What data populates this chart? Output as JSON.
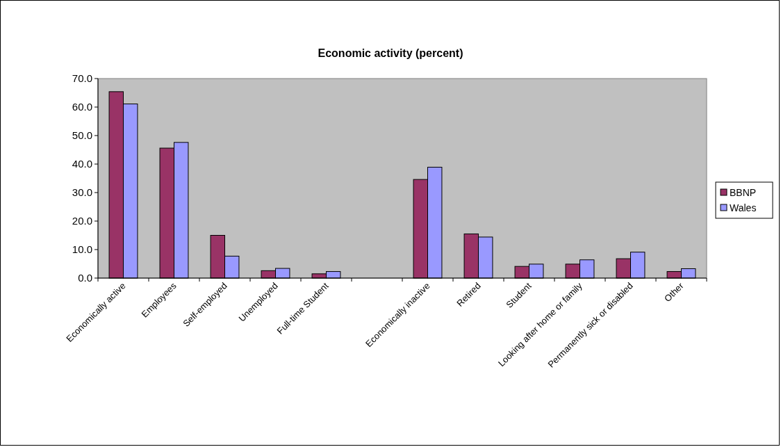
{
  "chart_data": {
    "type": "bar",
    "title": "Economic activity (percent)",
    "categories": [
      "Economically active",
      "Employees",
      "Self-employed",
      "Unemployed",
      "Full-time Student",
      null,
      "Economically inactive",
      "Retired",
      "Student",
      "Looking after home or family",
      "Permanently sick or disabled",
      "Other"
    ],
    "series": [
      {
        "name": "BBNP",
        "color": "#993366",
        "values": [
          65.4,
          45.6,
          15.0,
          2.6,
          1.5,
          null,
          34.6,
          15.5,
          4.1,
          4.9,
          6.8,
          2.3
        ]
      },
      {
        "name": "Wales",
        "color": "#9999ff",
        "values": [
          61.1,
          47.6,
          7.7,
          3.4,
          2.3,
          null,
          38.9,
          14.4,
          4.9,
          6.4,
          9.1,
          3.3
        ]
      }
    ],
    "ylim": [
      0,
      70
    ],
    "yticks": [
      {
        "value": 0,
        "label": "0.0"
      },
      {
        "value": 10,
        "label": "10.0"
      },
      {
        "value": 20,
        "label": "20.0"
      },
      {
        "value": 30,
        "label": "30.0"
      },
      {
        "value": 40,
        "label": "40.0"
      },
      {
        "value": 50,
        "label": "50.0"
      },
      {
        "value": 60,
        "label": "60.0"
      },
      {
        "value": 70,
        "label": "70.0"
      }
    ],
    "grid": false,
    "legend": "right"
  }
}
